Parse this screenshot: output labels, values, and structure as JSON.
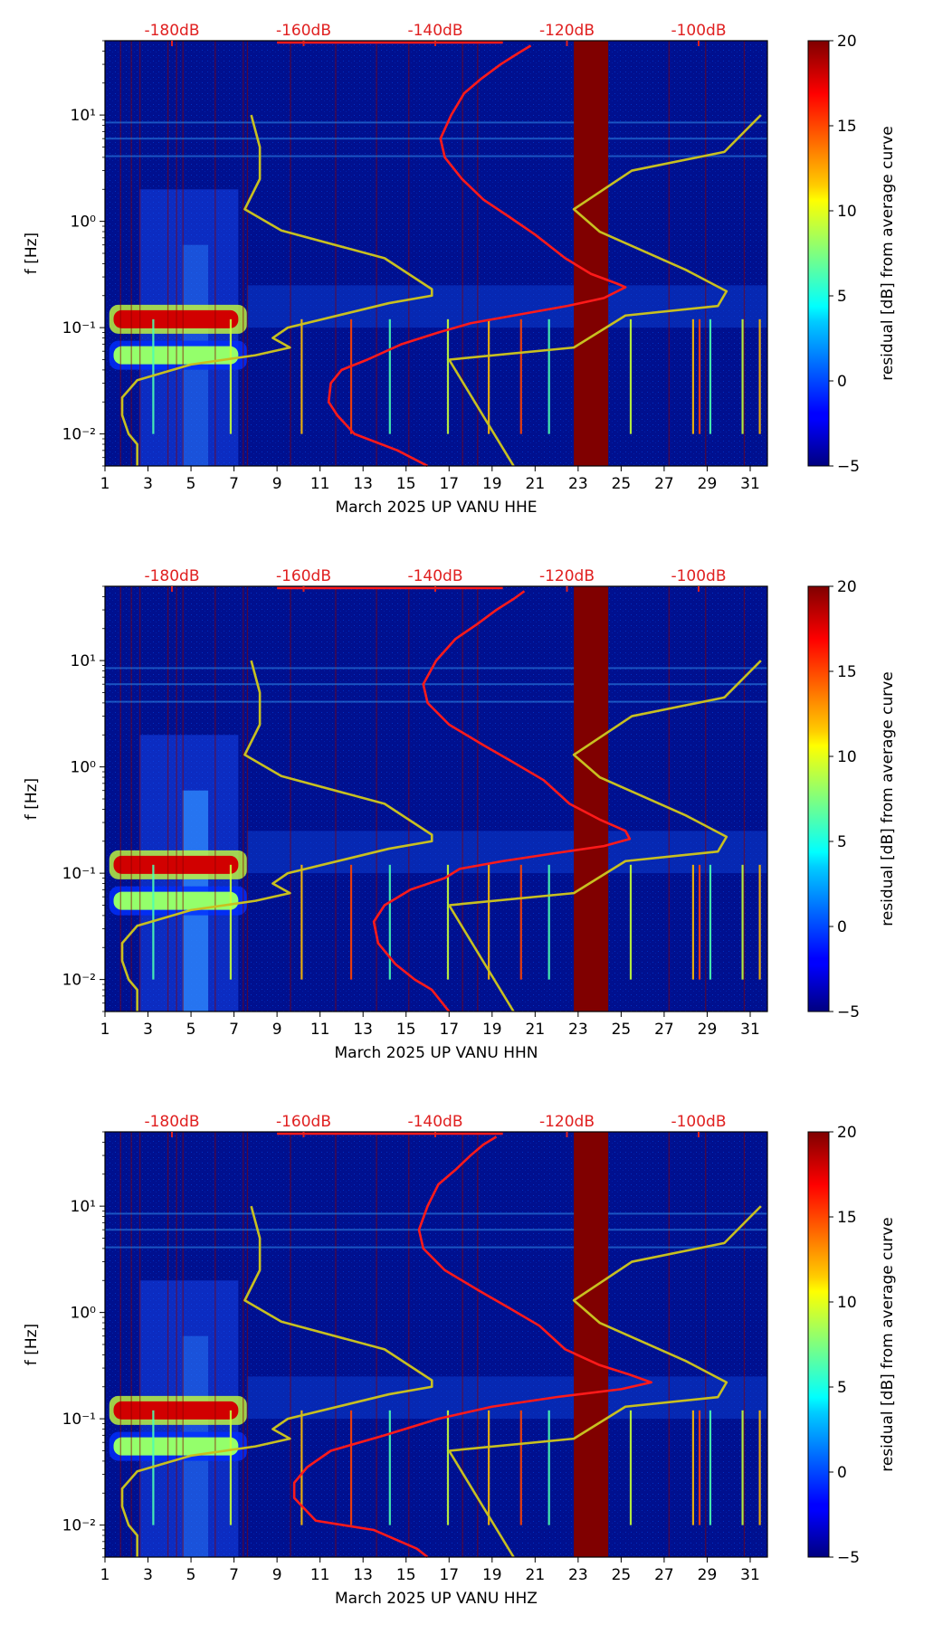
{
  "figure": {
    "colorbar_label": "residual [dB] from average curve",
    "ylabel": "f [Hz]"
  },
  "chart_data": [
    {
      "type": "heatmap",
      "title": "March 2025 UP VANU  HHE",
      "xlabel": "March 2025 UP VANU  HHE",
      "ylabel": "f [Hz]",
      "x_ticks": [
        "1",
        "3",
        "5",
        "7",
        "9",
        "11",
        "13",
        "15",
        "17",
        "19",
        "21",
        "23",
        "25",
        "27",
        "29",
        "31"
      ],
      "xlim": [
        1,
        31.8
      ],
      "y_ticks": [
        {
          "label": "10⁻²",
          "value": 0.01
        },
        {
          "label": "10⁻¹",
          "value": 0.1
        },
        {
          "label": "10⁰",
          "value": 1
        },
        {
          "label": "10¹",
          "value": 10
        }
      ],
      "ylim": [
        0.005,
        50
      ],
      "top_axis_labels": [
        "-180dB",
        "-160dB",
        "-140dB",
        "-120dB",
        "-100dB"
      ],
      "colorbar": {
        "ticks": [
          "−5",
          "0",
          "5",
          "10",
          "15",
          "20"
        ],
        "range": [
          -5,
          20
        ],
        "label": "residual [dB] from average curve"
      },
      "saturated_band": {
        "x_start": 22.8,
        "x_end": 24.4,
        "value_db": 20
      },
      "red_curve": [
        [
          20.8,
          45
        ],
        [
          20.2,
          38
        ],
        [
          19.4,
          30
        ],
        [
          18.5,
          22
        ],
        [
          17.7,
          16
        ],
        [
          17.1,
          10
        ],
        [
          16.6,
          6
        ],
        [
          16.8,
          4
        ],
        [
          17.6,
          2.5
        ],
        [
          18.6,
          1.6
        ],
        [
          19.8,
          1.1
        ],
        [
          21,
          0.75
        ],
        [
          22.4,
          0.45
        ],
        [
          23.6,
          0.32
        ],
        [
          24.8,
          0.26
        ],
        [
          25.2,
          0.24
        ],
        [
          24.2,
          0.19
        ],
        [
          22.5,
          0.16
        ],
        [
          20,
          0.13
        ],
        [
          18,
          0.11
        ],
        [
          16.5,
          0.09
        ],
        [
          14.8,
          0.07
        ],
        [
          13.2,
          0.05
        ],
        [
          12,
          0.04
        ],
        [
          11.5,
          0.03
        ],
        [
          11.4,
          0.02
        ],
        [
          11.8,
          0.015
        ],
        [
          12.6,
          0.01
        ],
        [
          14.6,
          0.007
        ],
        [
          16,
          0.005
        ]
      ],
      "yellow_curve": [
        [
          2.5,
          0.005
        ],
        [
          2.5,
          0.008
        ],
        [
          2.1,
          0.01
        ],
        [
          1.8,
          0.015
        ],
        [
          1.8,
          0.022
        ],
        [
          2.5,
          0.032
        ],
        [
          5,
          0.045
        ],
        [
          8,
          0.055
        ],
        [
          9.6,
          0.065
        ],
        [
          8.8,
          0.08
        ],
        [
          9.5,
          0.1
        ],
        [
          14.2,
          0.17
        ],
        [
          16.2,
          0.2
        ],
        [
          16.2,
          0.23
        ],
        [
          14,
          0.45
        ],
        [
          9.2,
          0.82
        ],
        [
          7.5,
          1.3
        ],
        [
          8.2,
          2.5
        ],
        [
          8.2,
          5
        ],
        [
          7.8,
          10
        ]
      ],
      "yellow_curve_right": [
        [
          17,
          0.05
        ],
        [
          22.8,
          0.065
        ],
        [
          25.2,
          0.13
        ],
        [
          29.5,
          0.16
        ],
        [
          29.9,
          0.22
        ],
        [
          28,
          0.35
        ],
        [
          24,
          0.8
        ],
        [
          22.8,
          1.3
        ],
        [
          25.5,
          3
        ],
        [
          29.8,
          4.5
        ],
        [
          31.5,
          10
        ]
      ],
      "yellow_curve_diag": [
        [
          17,
          0.05
        ],
        [
          20,
          0.005
        ]
      ],
      "hotspots": [
        {
          "x": 4,
          "f": 0.12,
          "db": 18
        },
        {
          "x": 4,
          "f": 0.055,
          "db": 8
        }
      ]
    },
    {
      "type": "heatmap",
      "title": "March 2025 UP VANU  HHN",
      "xlabel": "March 2025 UP VANU  HHN",
      "ylabel": "f [Hz]",
      "x_ticks": [
        "1",
        "3",
        "5",
        "7",
        "9",
        "11",
        "13",
        "15",
        "17",
        "19",
        "21",
        "23",
        "25",
        "27",
        "29",
        "31"
      ],
      "xlim": [
        1,
        31.8
      ],
      "y_ticks": [
        {
          "label": "10⁻²",
          "value": 0.01
        },
        {
          "label": "10⁻¹",
          "value": 0.1
        },
        {
          "label": "10⁰",
          "value": 1
        },
        {
          "label": "10¹",
          "value": 10
        }
      ],
      "ylim": [
        0.005,
        50
      ],
      "top_axis_labels": [
        "-180dB",
        "-160dB",
        "-140dB",
        "-120dB",
        "-100dB"
      ],
      "colorbar": {
        "ticks": [
          "−5",
          "0",
          "5",
          "10",
          "15",
          "20"
        ],
        "range": [
          -5,
          20
        ],
        "label": "residual [dB] from average curve"
      },
      "saturated_band": {
        "x_start": 22.8,
        "x_end": 24.4,
        "value_db": 20
      },
      "red_curve": [
        [
          20.5,
          45
        ],
        [
          20,
          38
        ],
        [
          19.2,
          30
        ],
        [
          18.3,
          22
        ],
        [
          17.3,
          16
        ],
        [
          16.4,
          10
        ],
        [
          15.8,
          6
        ],
        [
          16,
          4
        ],
        [
          17,
          2.5
        ],
        [
          18.6,
          1.6
        ],
        [
          20,
          1.1
        ],
        [
          21.4,
          0.75
        ],
        [
          22.6,
          0.45
        ],
        [
          24,
          0.32
        ],
        [
          25.2,
          0.25
        ],
        [
          25.4,
          0.21
        ],
        [
          24.2,
          0.18
        ],
        [
          22,
          0.155
        ],
        [
          19.5,
          0.13
        ],
        [
          17.5,
          0.11
        ],
        [
          16.8,
          0.09
        ],
        [
          15.2,
          0.07
        ],
        [
          14,
          0.05
        ],
        [
          13.5,
          0.035
        ],
        [
          13.7,
          0.022
        ],
        [
          14.5,
          0.014
        ],
        [
          15.4,
          0.01
        ],
        [
          16.2,
          0.008
        ],
        [
          17,
          0.005
        ]
      ],
      "yellow_curve": [
        [
          2.5,
          0.005
        ],
        [
          2.5,
          0.008
        ],
        [
          2.1,
          0.01
        ],
        [
          1.8,
          0.015
        ],
        [
          1.8,
          0.022
        ],
        [
          2.5,
          0.032
        ],
        [
          5,
          0.045
        ],
        [
          8,
          0.055
        ],
        [
          9.6,
          0.065
        ],
        [
          8.8,
          0.08
        ],
        [
          9.5,
          0.1
        ],
        [
          14.2,
          0.17
        ],
        [
          16.2,
          0.2
        ],
        [
          16.2,
          0.23
        ],
        [
          14,
          0.45
        ],
        [
          9.2,
          0.82
        ],
        [
          7.5,
          1.3
        ],
        [
          8.2,
          2.5
        ],
        [
          8.2,
          5
        ],
        [
          7.8,
          10
        ]
      ],
      "yellow_curve_right": [
        [
          17,
          0.05
        ],
        [
          22.8,
          0.065
        ],
        [
          25.2,
          0.13
        ],
        [
          29.5,
          0.16
        ],
        [
          29.9,
          0.22
        ],
        [
          28,
          0.35
        ],
        [
          24,
          0.8
        ],
        [
          22.8,
          1.3
        ],
        [
          25.5,
          3
        ],
        [
          29.8,
          4.5
        ],
        [
          31.5,
          10
        ]
      ],
      "yellow_curve_diag": [
        [
          17,
          0.05
        ],
        [
          20,
          0.005
        ]
      ],
      "hotspots": [
        {
          "x": 4,
          "f": 0.12,
          "db": 18
        },
        {
          "x": 4,
          "f": 0.055,
          "db": 8
        }
      ]
    },
    {
      "type": "heatmap",
      "title": "March 2025 UP VANU  HHZ",
      "xlabel": "March 2025 UP VANU  HHZ",
      "ylabel": "f [Hz]",
      "x_ticks": [
        "1",
        "3",
        "5",
        "7",
        "9",
        "11",
        "13",
        "15",
        "17",
        "19",
        "21",
        "23",
        "25",
        "27",
        "29",
        "31"
      ],
      "xlim": [
        1,
        31.8
      ],
      "y_ticks": [
        {
          "label": "10⁻²",
          "value": 0.01
        },
        {
          "label": "10⁻¹",
          "value": 0.1
        },
        {
          "label": "10⁰",
          "value": 1
        },
        {
          "label": "10¹",
          "value": 10
        }
      ],
      "ylim": [
        0.005,
        50
      ],
      "top_axis_labels": [
        "-180dB",
        "-160dB",
        "-140dB",
        "-120dB",
        "-100dB"
      ],
      "colorbar": {
        "ticks": [
          "−5",
          "0",
          "5",
          "10",
          "15",
          "20"
        ],
        "range": [
          -5,
          20
        ],
        "label": "residual [dB] from average curve"
      },
      "saturated_band": {
        "x_start": 22.8,
        "x_end": 24.4,
        "value_db": 20
      },
      "red_curve": [
        [
          19.2,
          45
        ],
        [
          18.6,
          38
        ],
        [
          18,
          30
        ],
        [
          17.3,
          22
        ],
        [
          16.5,
          16
        ],
        [
          16,
          10
        ],
        [
          15.6,
          6
        ],
        [
          15.8,
          4
        ],
        [
          16.8,
          2.5
        ],
        [
          18.4,
          1.6
        ],
        [
          19.8,
          1.1
        ],
        [
          21.2,
          0.75
        ],
        [
          22.4,
          0.45
        ],
        [
          24,
          0.32
        ],
        [
          25.4,
          0.26
        ],
        [
          26.4,
          0.22
        ],
        [
          25,
          0.19
        ],
        [
          22,
          0.16
        ],
        [
          19,
          0.13
        ],
        [
          16.5,
          0.1
        ],
        [
          14,
          0.07
        ],
        [
          11.5,
          0.05
        ],
        [
          10.4,
          0.035
        ],
        [
          9.8,
          0.025
        ],
        [
          9.8,
          0.018
        ],
        [
          10.8,
          0.011
        ],
        [
          13.5,
          0.009
        ],
        [
          15.5,
          0.006
        ],
        [
          16,
          0.005
        ]
      ],
      "yellow_curve": [
        [
          2.5,
          0.005
        ],
        [
          2.5,
          0.008
        ],
        [
          2.1,
          0.01
        ],
        [
          1.8,
          0.015
        ],
        [
          1.8,
          0.022
        ],
        [
          2.5,
          0.032
        ],
        [
          5,
          0.045
        ],
        [
          8,
          0.055
        ],
        [
          9.6,
          0.065
        ],
        [
          8.8,
          0.08
        ],
        [
          9.5,
          0.1
        ],
        [
          14.2,
          0.17
        ],
        [
          16.2,
          0.2
        ],
        [
          16.2,
          0.23
        ],
        [
          14,
          0.45
        ],
        [
          9.2,
          0.82
        ],
        [
          7.5,
          1.3
        ],
        [
          8.2,
          2.5
        ],
        [
          8.2,
          5
        ],
        [
          7.8,
          10
        ]
      ],
      "yellow_curve_right": [
        [
          17,
          0.05
        ],
        [
          22.8,
          0.065
        ],
        [
          25.2,
          0.13
        ],
        [
          29.5,
          0.16
        ],
        [
          29.9,
          0.22
        ],
        [
          28,
          0.35
        ],
        [
          24,
          0.8
        ],
        [
          22.8,
          1.3
        ],
        [
          25.5,
          3
        ],
        [
          29.8,
          4.5
        ],
        [
          31.5,
          10
        ]
      ],
      "yellow_curve_diag": [
        [
          17,
          0.05
        ],
        [
          20,
          0.005
        ]
      ],
      "hotspots": [
        {
          "x": 4,
          "f": 0.12,
          "db": 18
        },
        {
          "x": 4,
          "f": 0.055,
          "db": 8
        }
      ]
    }
  ]
}
